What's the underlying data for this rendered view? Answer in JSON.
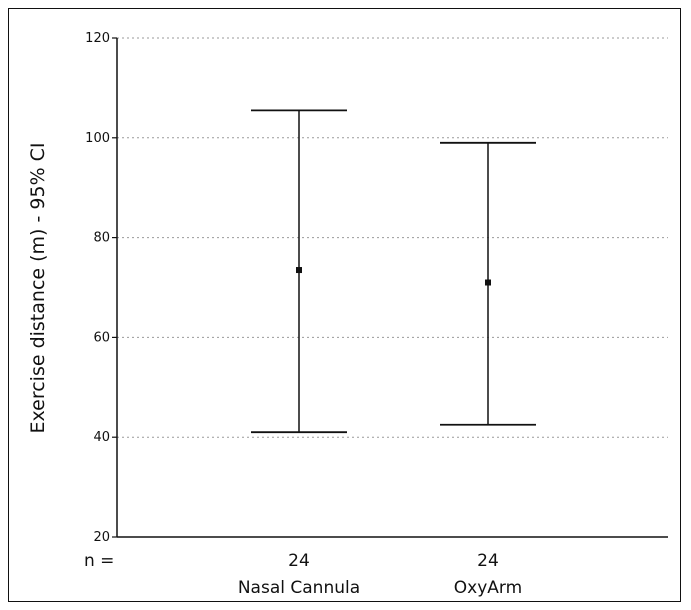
{
  "chart_data": {
    "type": "errorbar",
    "ylabel": "Exercise distance (m) - 95% CI",
    "ylim": [
      20,
      120
    ],
    "yticks": [
      20,
      40,
      60,
      80,
      100,
      120
    ],
    "grid": true,
    "n_label": "n =",
    "groups": [
      {
        "category": "Nasal Cannula",
        "n": "24",
        "mean": 73.5,
        "lower": 41,
        "upper": 105.5
      },
      {
        "category": "OxyArm",
        "n": "24",
        "mean": 71,
        "lower": 42.5,
        "upper": 99
      }
    ]
  }
}
